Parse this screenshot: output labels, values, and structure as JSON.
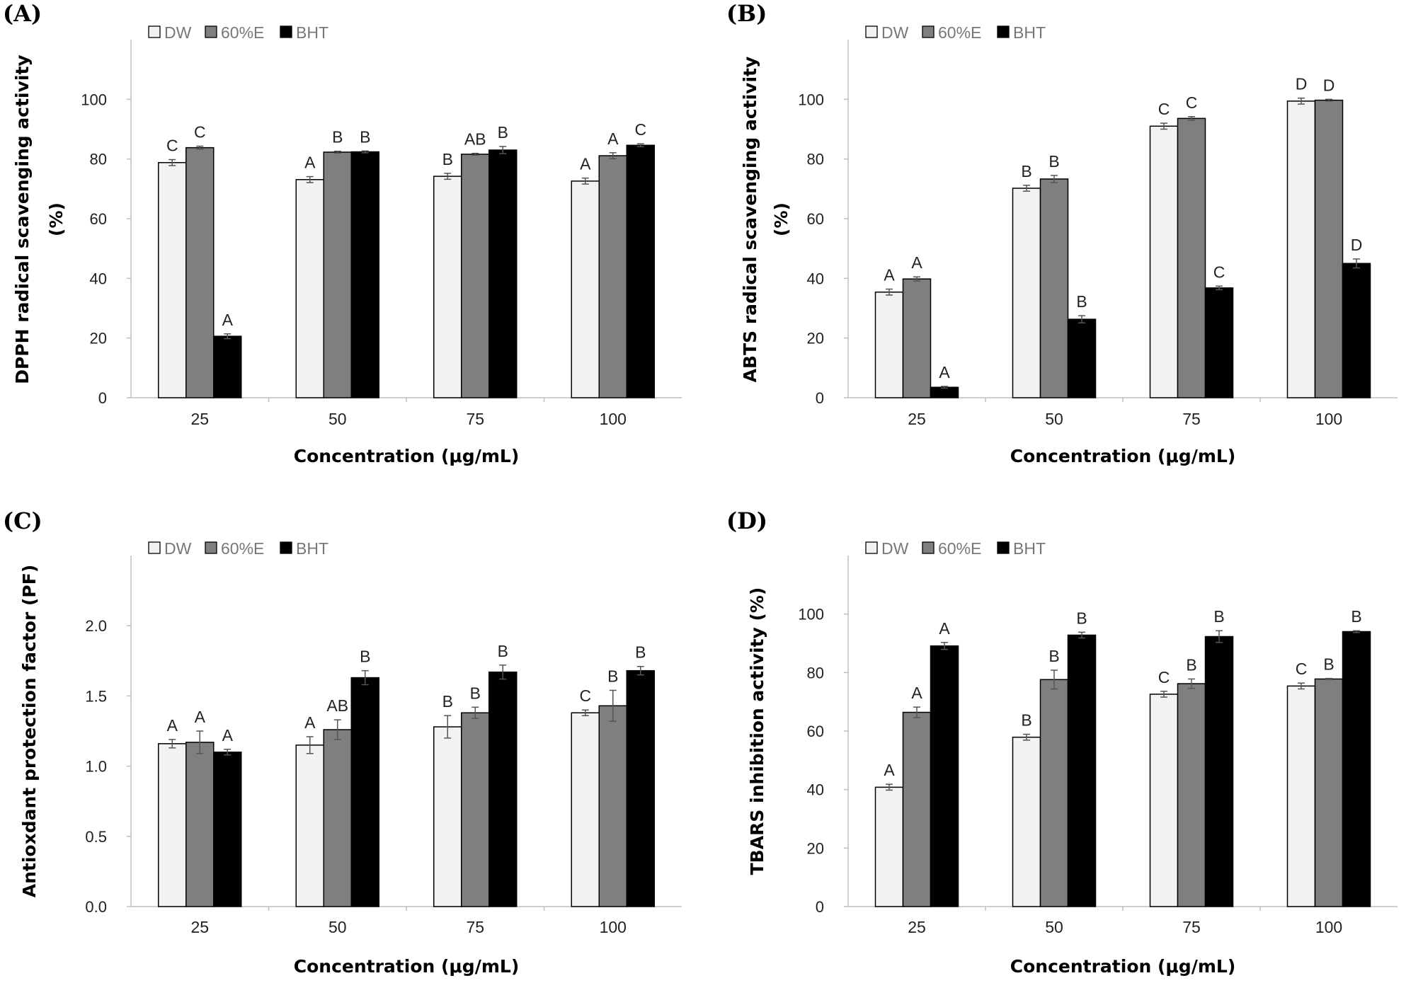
{
  "chart_data": [
    {
      "panel_label": "(A)",
      "type": "bar",
      "title": "",
      "xlabel": "Concentration (μg/mL)",
      "ylabel": [
        "DPPH radical scavenging activity",
        "(%)"
      ],
      "ylim": [
        0,
        120
      ],
      "yticks": [
        "0",
        "20",
        "40",
        "60",
        "80",
        "100"
      ],
      "ytick_values": [
        0,
        20,
        40,
        60,
        80,
        100
      ],
      "categories": [
        "25",
        "50",
        "75",
        "100"
      ],
      "legend_position": "top-left",
      "grid": false,
      "series": [
        {
          "name": "DW",
          "color": "#f2f2f2",
          "values": [
            78.8,
            73.1,
            74.2,
            72.6
          ],
          "errors": [
            1.0,
            1.0,
            1.0,
            1.0
          ],
          "letters": [
            "C",
            "A",
            "B",
            "A"
          ]
        },
        {
          "name": "60%E",
          "color": "#7f7f7f",
          "values": [
            83.8,
            82.3,
            81.6,
            81.1
          ],
          "errors": [
            0.5,
            0.3,
            0.3,
            1.0
          ],
          "letters": [
            "C",
            "B",
            "AB",
            "A"
          ]
        },
        {
          "name": "BHT",
          "color": "#000000",
          "values": [
            20.6,
            82.4,
            83.0,
            84.6
          ],
          "errors": [
            0.8,
            0.3,
            1.2,
            0.5
          ],
          "letters": [
            "A",
            "B",
            "B",
            "C"
          ]
        }
      ]
    },
    {
      "panel_label": "(B)",
      "type": "bar",
      "title": "",
      "xlabel": "Concentration (μg/mL)",
      "ylabel": [
        "ABTS radical scavenging activity",
        "(%)"
      ],
      "ylim": [
        0,
        120
      ],
      "yticks": [
        "0",
        "20",
        "40",
        "60",
        "80",
        "100"
      ],
      "ytick_values": [
        0,
        20,
        40,
        60,
        80,
        100
      ],
      "categories": [
        "25",
        "50",
        "75",
        "100"
      ],
      "legend_position": "top-left",
      "grid": false,
      "series": [
        {
          "name": "DW",
          "color": "#f2f2f2",
          "values": [
            35.4,
            70.2,
            91.0,
            99.4
          ],
          "errors": [
            1.0,
            1.0,
            1.0,
            1.0
          ],
          "letters": [
            "A",
            "B",
            "C",
            "D"
          ]
        },
        {
          "name": "60%E",
          "color": "#7f7f7f",
          "values": [
            39.8,
            73.3,
            93.6,
            99.7
          ],
          "errors": [
            0.7,
            1.2,
            0.6,
            0.3
          ],
          "letters": [
            "A",
            "B",
            "C",
            "D"
          ]
        },
        {
          "name": "BHT",
          "color": "#000000",
          "values": [
            3.5,
            26.3,
            36.8,
            45.0
          ],
          "errors": [
            0.3,
            1.2,
            0.6,
            1.5
          ],
          "letters": [
            "A",
            "B",
            "C",
            "D"
          ]
        }
      ]
    },
    {
      "panel_label": "(C)",
      "type": "bar",
      "title": "",
      "xlabel": "Concentration (μg/mL)",
      "ylabel": [
        "Antioxdant protection factor (PF)"
      ],
      "ylim": [
        0,
        2.5
      ],
      "yticks": [
        "0.0",
        "0.5",
        "1.0",
        "1.5",
        "2.0"
      ],
      "ytick_values": [
        0,
        0.5,
        1.0,
        1.5,
        2.0
      ],
      "categories": [
        "25",
        "50",
        "75",
        "100"
      ],
      "legend_position": "top-left",
      "grid": false,
      "series": [
        {
          "name": "DW",
          "color": "#f2f2f2",
          "values": [
            1.16,
            1.15,
            1.28,
            1.38
          ],
          "errors": [
            0.03,
            0.06,
            0.08,
            0.02
          ],
          "letters": [
            "A",
            "A",
            "B",
            "C"
          ]
        },
        {
          "name": "60%E",
          "color": "#7f7f7f",
          "values": [
            1.17,
            1.26,
            1.38,
            1.43
          ],
          "errors": [
            0.08,
            0.07,
            0.04,
            0.11
          ],
          "letters": [
            "A",
            "AB",
            "B",
            "B"
          ]
        },
        {
          "name": "BHT",
          "color": "#000000",
          "values": [
            1.1,
            1.63,
            1.67,
            1.68
          ],
          "errors": [
            0.02,
            0.05,
            0.05,
            0.03
          ],
          "letters": [
            "A",
            "B",
            "B",
            "B"
          ]
        }
      ]
    },
    {
      "panel_label": "(D)",
      "type": "bar",
      "title": "",
      "xlabel": "Concentration (μg/mL)",
      "ylabel": [
        "TBARS inhibition activity (%)"
      ],
      "ylim": [
        0,
        120
      ],
      "yticks": [
        "0",
        "20",
        "40",
        "60",
        "80",
        "100"
      ],
      "ytick_values": [
        0,
        20,
        40,
        60,
        80,
        100
      ],
      "categories": [
        "25",
        "50",
        "75",
        "100"
      ],
      "legend_position": "top-left",
      "grid": false,
      "series": [
        {
          "name": "DW",
          "color": "#f2f2f2",
          "values": [
            40.8,
            57.9,
            72.6,
            75.4
          ],
          "errors": [
            1.0,
            1.0,
            1.0,
            1.0
          ],
          "letters": [
            "A",
            "B",
            "C",
            "C"
          ]
        },
        {
          "name": "60%E",
          "color": "#7f7f7f",
          "values": [
            66.4,
            77.6,
            76.2,
            77.8
          ],
          "errors": [
            1.8,
            3.2,
            1.6,
            0.2
          ],
          "letters": [
            "A",
            "B",
            "B",
            "B"
          ]
        },
        {
          "name": "BHT",
          "color": "#000000",
          "values": [
            89.1,
            92.8,
            92.3,
            94.0
          ],
          "errors": [
            1.2,
            1.0,
            2.0,
            0.3
          ],
          "letters": [
            "A",
            "B",
            "B",
            "B"
          ]
        }
      ]
    }
  ]
}
